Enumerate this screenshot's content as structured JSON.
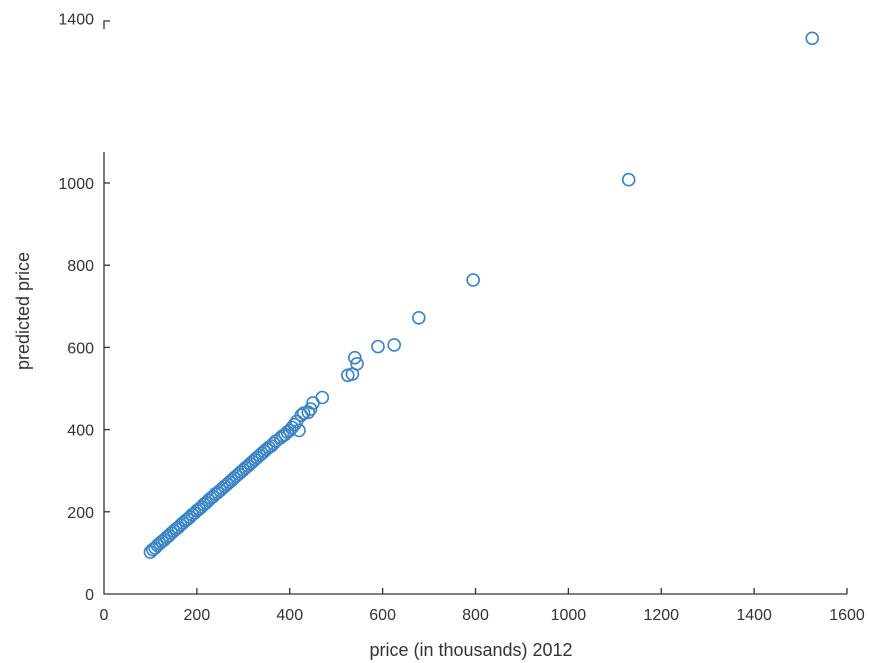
{
  "chart_data": {
    "type": "scatter",
    "title": "",
    "xlabel": "price (in thousands) 2012",
    "ylabel": "predicted price",
    "xlim": [
      0,
      1600
    ],
    "ylim": [
      0,
      1400
    ],
    "xticks": [
      "0",
      "200",
      "400",
      "600",
      "800",
      "1000",
      "1200",
      "1400",
      "1600"
    ],
    "yticks": [
      "0",
      "200",
      "400",
      "600",
      "800",
      "1000",
      "1400"
    ],
    "grid": false,
    "marker": "open-circle",
    "color": "#3a84c4",
    "series": [
      {
        "x": [
          100,
          105,
          110,
          115,
          120,
          125,
          130,
          135,
          140,
          145,
          150,
          155,
          160,
          165,
          170,
          175,
          180,
          185,
          190,
          195,
          200,
          205,
          210,
          215,
          220,
          225,
          230,
          235,
          240,
          245,
          250,
          255,
          260,
          265,
          270,
          275,
          280,
          285,
          290,
          295,
          300,
          305,
          310,
          315,
          320,
          325,
          330,
          335,
          340,
          345,
          350,
          355,
          360,
          365,
          370,
          380,
          385,
          390,
          395,
          400,
          405,
          410,
          415,
          420,
          425,
          430,
          440,
          445,
          450,
          470,
          525,
          535,
          540,
          545,
          590,
          625,
          678,
          795,
          1130,
          1525
        ],
        "y": [
          102,
          108,
          112,
          118,
          123,
          128,
          132,
          138,
          142,
          148,
          153,
          158,
          162,
          168,
          173,
          178,
          182,
          187,
          193,
          197,
          203,
          207,
          212,
          218,
          222,
          228,
          233,
          237,
          243,
          247,
          252,
          257,
          262,
          267,
          272,
          277,
          282,
          287,
          292,
          297,
          302,
          307,
          312,
          317,
          322,
          327,
          332,
          337,
          342,
          347,
          352,
          357,
          360,
          366,
          372,
          380,
          385,
          388,
          394,
          398,
          405,
          412,
          420,
          398,
          435,
          440,
          442,
          450,
          465,
          478,
          532,
          535,
          575,
          560,
          602,
          606,
          672,
          764,
          1008,
          1352
        ]
      }
    ]
  }
}
